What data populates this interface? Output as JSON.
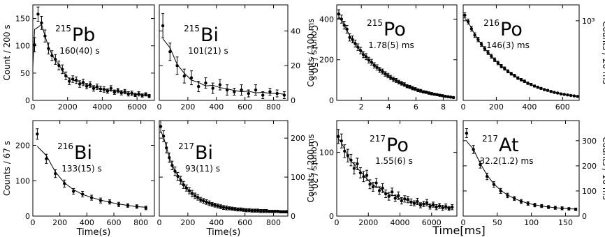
{
  "panels": [
    {
      "id": "pb215",
      "mass": "215",
      "element": "Pb",
      "halflife": "160(40) s",
      "ylabel": "Count / 200 s",
      "yaxis_side": "left",
      "xlabel": "",
      "xlim": [
        0,
        7000
      ],
      "ylim": [
        0,
        175
      ],
      "xticks": [
        0,
        2000,
        4000,
        6000
      ],
      "yticks": [
        0,
        50,
        100,
        150
      ]
    },
    {
      "id": "bi215",
      "mass": "215",
      "element": "Bi",
      "halflife": "101(21) s",
      "ylabel": "Counts / 50 s",
      "yaxis_side": "right",
      "xlabel": "",
      "xlim": [
        0,
        900
      ],
      "ylim": [
        0,
        55
      ],
      "xticks": [
        0,
        200,
        400,
        600,
        800
      ],
      "yticks": [
        0,
        20,
        40
      ]
    },
    {
      "id": "po215",
      "mass": "215",
      "element": "Po",
      "halflife": "1.78(5) ms",
      "ylabel": "Counts / 100 ms",
      "yaxis_side": "left",
      "xlabel": "",
      "xlim": [
        0.2,
        9
      ],
      "ylim": [
        0,
        470
      ],
      "xticks": [
        2,
        4,
        6,
        8
      ],
      "yticks": [
        0,
        200,
        400
      ]
    },
    {
      "id": "po216",
      "mass": "216",
      "element": "Po",
      "halflife": "146(3) ms",
      "ylabel": "Counts / 20 ms",
      "yaxis_side": "right",
      "xlabel": "",
      "xlim": [
        0,
        700
      ],
      "ylim": [
        0,
        1200
      ],
      "xticks": [
        0,
        200,
        400,
        600
      ],
      "yticks": [
        1000
      ],
      "yticklabels": [
        "10³"
      ]
    },
    {
      "id": "bi216",
      "mass": "216",
      "element": "Bi",
      "halflife": "133(15) s",
      "ylabel": "Counts / 67 s",
      "yaxis_side": "left",
      "xlabel": "Time(s)",
      "xlim": [
        0,
        900
      ],
      "ylim": [
        0,
        270
      ],
      "xticks": [
        0,
        200,
        400,
        600,
        800
      ],
      "yticks": [
        0,
        100,
        200
      ]
    },
    {
      "id": "bi217",
      "mass": "217",
      "element": "Bi",
      "halflife": "93(11) s",
      "ylabel": "Counts / 20 s",
      "yaxis_side": "right",
      "xlabel": "Time(s)",
      "xlim": [
        0,
        900
      ],
      "ylim": [
        0,
        245
      ],
      "xticks": [
        0,
        200,
        400,
        600,
        800
      ],
      "yticks": [
        0,
        100,
        200
      ]
    },
    {
      "id": "po217",
      "mass": "217",
      "element": "Po",
      "halflife": "1.55(6) s",
      "ylabel": "Counts / 200 ms",
      "yaxis_side": "left",
      "xlabel": "",
      "xlim": [
        0,
        7600
      ],
      "ylim": [
        0,
        150
      ],
      "xticks": [
        0,
        2000,
        4000,
        6000
      ],
      "yticks": [
        0,
        100
      ]
    },
    {
      "id": "at217",
      "mass": "217",
      "element": "At",
      "halflife": "32.2(1.2) ms",
      "ylabel": "Counts / 10 ms",
      "yaxis_side": "right",
      "xlabel": "",
      "xlim": [
        0,
        170
      ],
      "ylim": [
        0,
        380
      ],
      "xticks": [
        0,
        50,
        100,
        150
      ],
      "yticks": [
        0,
        100,
        200,
        300
      ]
    }
  ],
  "shared_xlabel": "Time[ms]",
  "chart_data": [
    {
      "type": "scatter",
      "title": "215Pb",
      "halflife": "160(40) s",
      "ylabel": "Count / 200 s",
      "xlim": [
        0,
        7000
      ],
      "ylim": [
        0,
        175
      ],
      "x": [
        100,
        300,
        500,
        700,
        900,
        1100,
        1300,
        1500,
        1700,
        1900,
        2100,
        2300,
        2500,
        2700,
        2900,
        3100,
        3300,
        3500,
        3700,
        3900,
        4100,
        4300,
        4500,
        4700,
        4900,
        5100,
        5300,
        5500,
        5700,
        5900,
        6100,
        6300,
        6500,
        6700
      ],
      "y": [
        102,
        158,
        142,
        118,
        95,
        82,
        75,
        64,
        57,
        45,
        35,
        39,
        37,
        30,
        33,
        26,
        29,
        22,
        25,
        21,
        20,
        17,
        22,
        15,
        18,
        14,
        16,
        12,
        13,
        10,
        12,
        9,
        11,
        8
      ],
      "err": [
        13,
        13,
        12,
        11,
        10,
        9,
        9,
        8,
        8,
        7,
        6,
        6,
        6,
        6,
        6,
        5,
        5,
        5,
        5,
        5,
        5,
        4,
        5,
        4,
        4,
        4,
        4,
        4,
        4,
        3,
        4,
        3,
        3,
        3
      ]
    },
    {
      "type": "scatter",
      "title": "215Bi",
      "halflife": "101(21) s",
      "ylabel": "Counts / 50 s",
      "xlim": [
        0,
        900
      ],
      "ylim": [
        0,
        55
      ],
      "x": [
        25,
        75,
        125,
        175,
        225,
        275,
        325,
        375,
        425,
        475,
        525,
        575,
        625,
        675,
        725,
        775,
        825,
        875
      ],
      "y": [
        43,
        28,
        20,
        14,
        13,
        8,
        10,
        7,
        9,
        6,
        5,
        6,
        4,
        6,
        3,
        5,
        4,
        3
      ],
      "err": [
        7,
        5,
        5,
        4,
        4,
        3,
        3,
        3,
        3,
        3,
        2,
        3,
        2,
        3,
        2,
        2,
        2,
        2
      ]
    },
    {
      "type": "scatter",
      "title": "215Po",
      "halflife": "1.78(5) ms",
      "ylabel": "Counts / 100 ms",
      "xlim": [
        0.2,
        9
      ],
      "ylim": [
        0,
        470
      ],
      "x": [
        0.35,
        0.55,
        0.75,
        0.95,
        1.15,
        1.35,
        1.55,
        1.75,
        1.95,
        2.15,
        2.35,
        2.55,
        2.75,
        2.95,
        3.15,
        3.35,
        3.55,
        3.75,
        3.95,
        4.15,
        4.35,
        4.55,
        4.75,
        4.95,
        5.15,
        5.35,
        5.55,
        5.75,
        5.95,
        6.15,
        6.35,
        6.55,
        6.75,
        6.95,
        7.15,
        7.35,
        7.55,
        7.75,
        7.95,
        8.15,
        8.35,
        8.55,
        8.75
      ],
      "y": [
        425,
        400,
        370,
        350,
        310,
        300,
        280,
        262,
        245,
        225,
        215,
        198,
        188,
        172,
        162,
        150,
        142,
        130,
        122,
        112,
        104,
        98,
        90,
        84,
        78,
        70,
        66,
        60,
        56,
        50,
        47,
        42,
        40,
        36,
        33,
        30,
        28,
        25,
        23,
        20,
        18,
        16,
        14
      ],
      "err": [
        21,
        20,
        19,
        19,
        18,
        17,
        17,
        16,
        16,
        15,
        15,
        14,
        14,
        13,
        13,
        12,
        12,
        11,
        11,
        11,
        10,
        10,
        9,
        9,
        9,
        8,
        8,
        8,
        7,
        7,
        7,
        6,
        6,
        6,
        6,
        5,
        5,
        5,
        5,
        4,
        4,
        4,
        4
      ]
    },
    {
      "type": "scatter",
      "title": "216Po",
      "halflife": "146(3) ms",
      "ylabel": "Counts / 20 ms",
      "xlim": [
        0,
        700
      ],
      "ylim": [
        0,
        1200
      ],
      "x": [
        10,
        30,
        50,
        70,
        90,
        110,
        130,
        150,
        170,
        190,
        210,
        230,
        250,
        270,
        290,
        310,
        330,
        350,
        370,
        390,
        410,
        430,
        450,
        470,
        490,
        510,
        530,
        550,
        570,
        590,
        610,
        630,
        650,
        670,
        690
      ],
      "y": [
        1070,
        990,
        900,
        820,
        765,
        705,
        650,
        600,
        555,
        510,
        470,
        430,
        400,
        365,
        335,
        310,
        280,
        260,
        240,
        215,
        200,
        180,
        165,
        150,
        135,
        125,
        112,
        100,
        92,
        82,
        75,
        68,
        62,
        56,
        50
      ],
      "err": [
        33,
        32,
        30,
        29,
        28,
        27,
        26,
        25,
        24,
        23,
        22,
        21,
        20,
        19,
        18,
        18,
        17,
        16,
        16,
        15,
        14,
        13,
        13,
        12,
        12,
        11,
        11,
        10,
        10,
        9,
        9,
        8,
        8,
        8,
        7
      ]
    },
    {
      "type": "scatter",
      "title": "216Bi",
      "halflife": "133(15) s",
      "ylabel": "Counts / 67 s",
      "xlim": [
        0,
        900
      ],
      "ylim": [
        0,
        270
      ],
      "x": [
        33,
        100,
        167,
        234,
        301,
        368,
        435,
        502,
        569,
        636,
        703,
        770,
        837
      ],
      "y": [
        232,
        162,
        120,
        92,
        70,
        62,
        52,
        44,
        40,
        33,
        30,
        27,
        23
      ],
      "err": [
        15,
        13,
        11,
        10,
        8,
        8,
        7,
        7,
        6,
        6,
        5,
        5,
        5
      ]
    },
    {
      "type": "scatter",
      "title": "217Bi",
      "halflife": "93(11) s",
      "ylabel": "Counts / 20 s",
      "xlim": [
        0,
        900
      ],
      "ylim": [
        0,
        245
      ],
      "x": [
        10,
        30,
        50,
        70,
        90,
        110,
        130,
        150,
        170,
        190,
        210,
        230,
        250,
        270,
        290,
        310,
        330,
        350,
        370,
        390,
        410,
        430,
        450,
        470,
        490,
        510,
        530,
        550,
        570,
        590,
        610,
        630,
        650,
        670,
        690,
        710,
        730,
        750,
        770,
        790,
        810,
        830,
        850,
        870,
        890
      ],
      "y": [
        230,
        205,
        175,
        150,
        130,
        115,
        102,
        92,
        80,
        72,
        65,
        58,
        52,
        48,
        42,
        39,
        36,
        33,
        30,
        28,
        26,
        24,
        22,
        21,
        20,
        19,
        18,
        17,
        17,
        16,
        15,
        15,
        14,
        14,
        14,
        13,
        13,
        13,
        12,
        12,
        12,
        12,
        11,
        11,
        11
      ],
      "err": [
        15,
        14,
        13,
        12,
        11,
        11,
        10,
        10,
        9,
        8,
        8,
        8,
        7,
        7,
        6,
        6,
        6,
        6,
        5,
        5,
        5,
        5,
        5,
        5,
        4,
        4,
        4,
        4,
        4,
        4,
        4,
        4,
        4,
        4,
        4,
        4,
        4,
        4,
        3,
        3,
        3,
        3,
        3,
        3,
        3
      ]
    },
    {
      "type": "scatter",
      "title": "217Po",
      "halflife": "1.55(6) s",
      "ylabel": "Counts / 200 ms",
      "xlim": [
        0,
        7600
      ],
      "ylim": [
        0,
        150
      ],
      "x": [
        100,
        300,
        500,
        700,
        900,
        1100,
        1300,
        1500,
        1700,
        1900,
        2100,
        2300,
        2500,
        2700,
        2900,
        3100,
        3300,
        3500,
        3700,
        3900,
        4100,
        4300,
        4500,
        4700,
        4900,
        5100,
        5300,
        5500,
        5700,
        5900,
        6100,
        6300,
        6500,
        6700,
        6900,
        7100,
        7300
      ],
      "y": [
        125,
        118,
        102,
        95,
        88,
        75,
        82,
        68,
        62,
        64,
        50,
        46,
        52,
        40,
        44,
        35,
        31,
        38,
        28,
        32,
        24,
        27,
        26,
        22,
        20,
        23,
        17,
        19,
        21,
        15,
        18,
        14,
        16,
        13,
        15,
        12,
        14
      ],
      "err": [
        11,
        11,
        10,
        10,
        9,
        9,
        9,
        8,
        8,
        8,
        7,
        7,
        7,
        6,
        7,
        6,
        6,
        6,
        5,
        6,
        5,
        5,
        5,
        5,
        4,
        5,
        4,
        4,
        5,
        4,
        4,
        4,
        4,
        4,
        4,
        3,
        4
      ]
    },
    {
      "type": "scatter",
      "title": "217At",
      "halflife": "32.2(1.2) ms",
      "ylabel": "Counts / 10 ms",
      "xlim": [
        0,
        170
      ],
      "ylim": [
        0,
        380
      ],
      "x": [
        5,
        15,
        25,
        35,
        45,
        55,
        65,
        75,
        85,
        95,
        105,
        115,
        125,
        135,
        145,
        155,
        165
      ],
      "y": [
        330,
        265,
        205,
        158,
        126,
        100,
        82,
        70,
        58,
        50,
        44,
        40,
        36,
        33,
        31,
        29,
        27
      ],
      "err": [
        18,
        16,
        14,
        13,
        11,
        10,
        9,
        8,
        8,
        7,
        7,
        6,
        6,
        6,
        6,
        5,
        5
      ]
    }
  ]
}
